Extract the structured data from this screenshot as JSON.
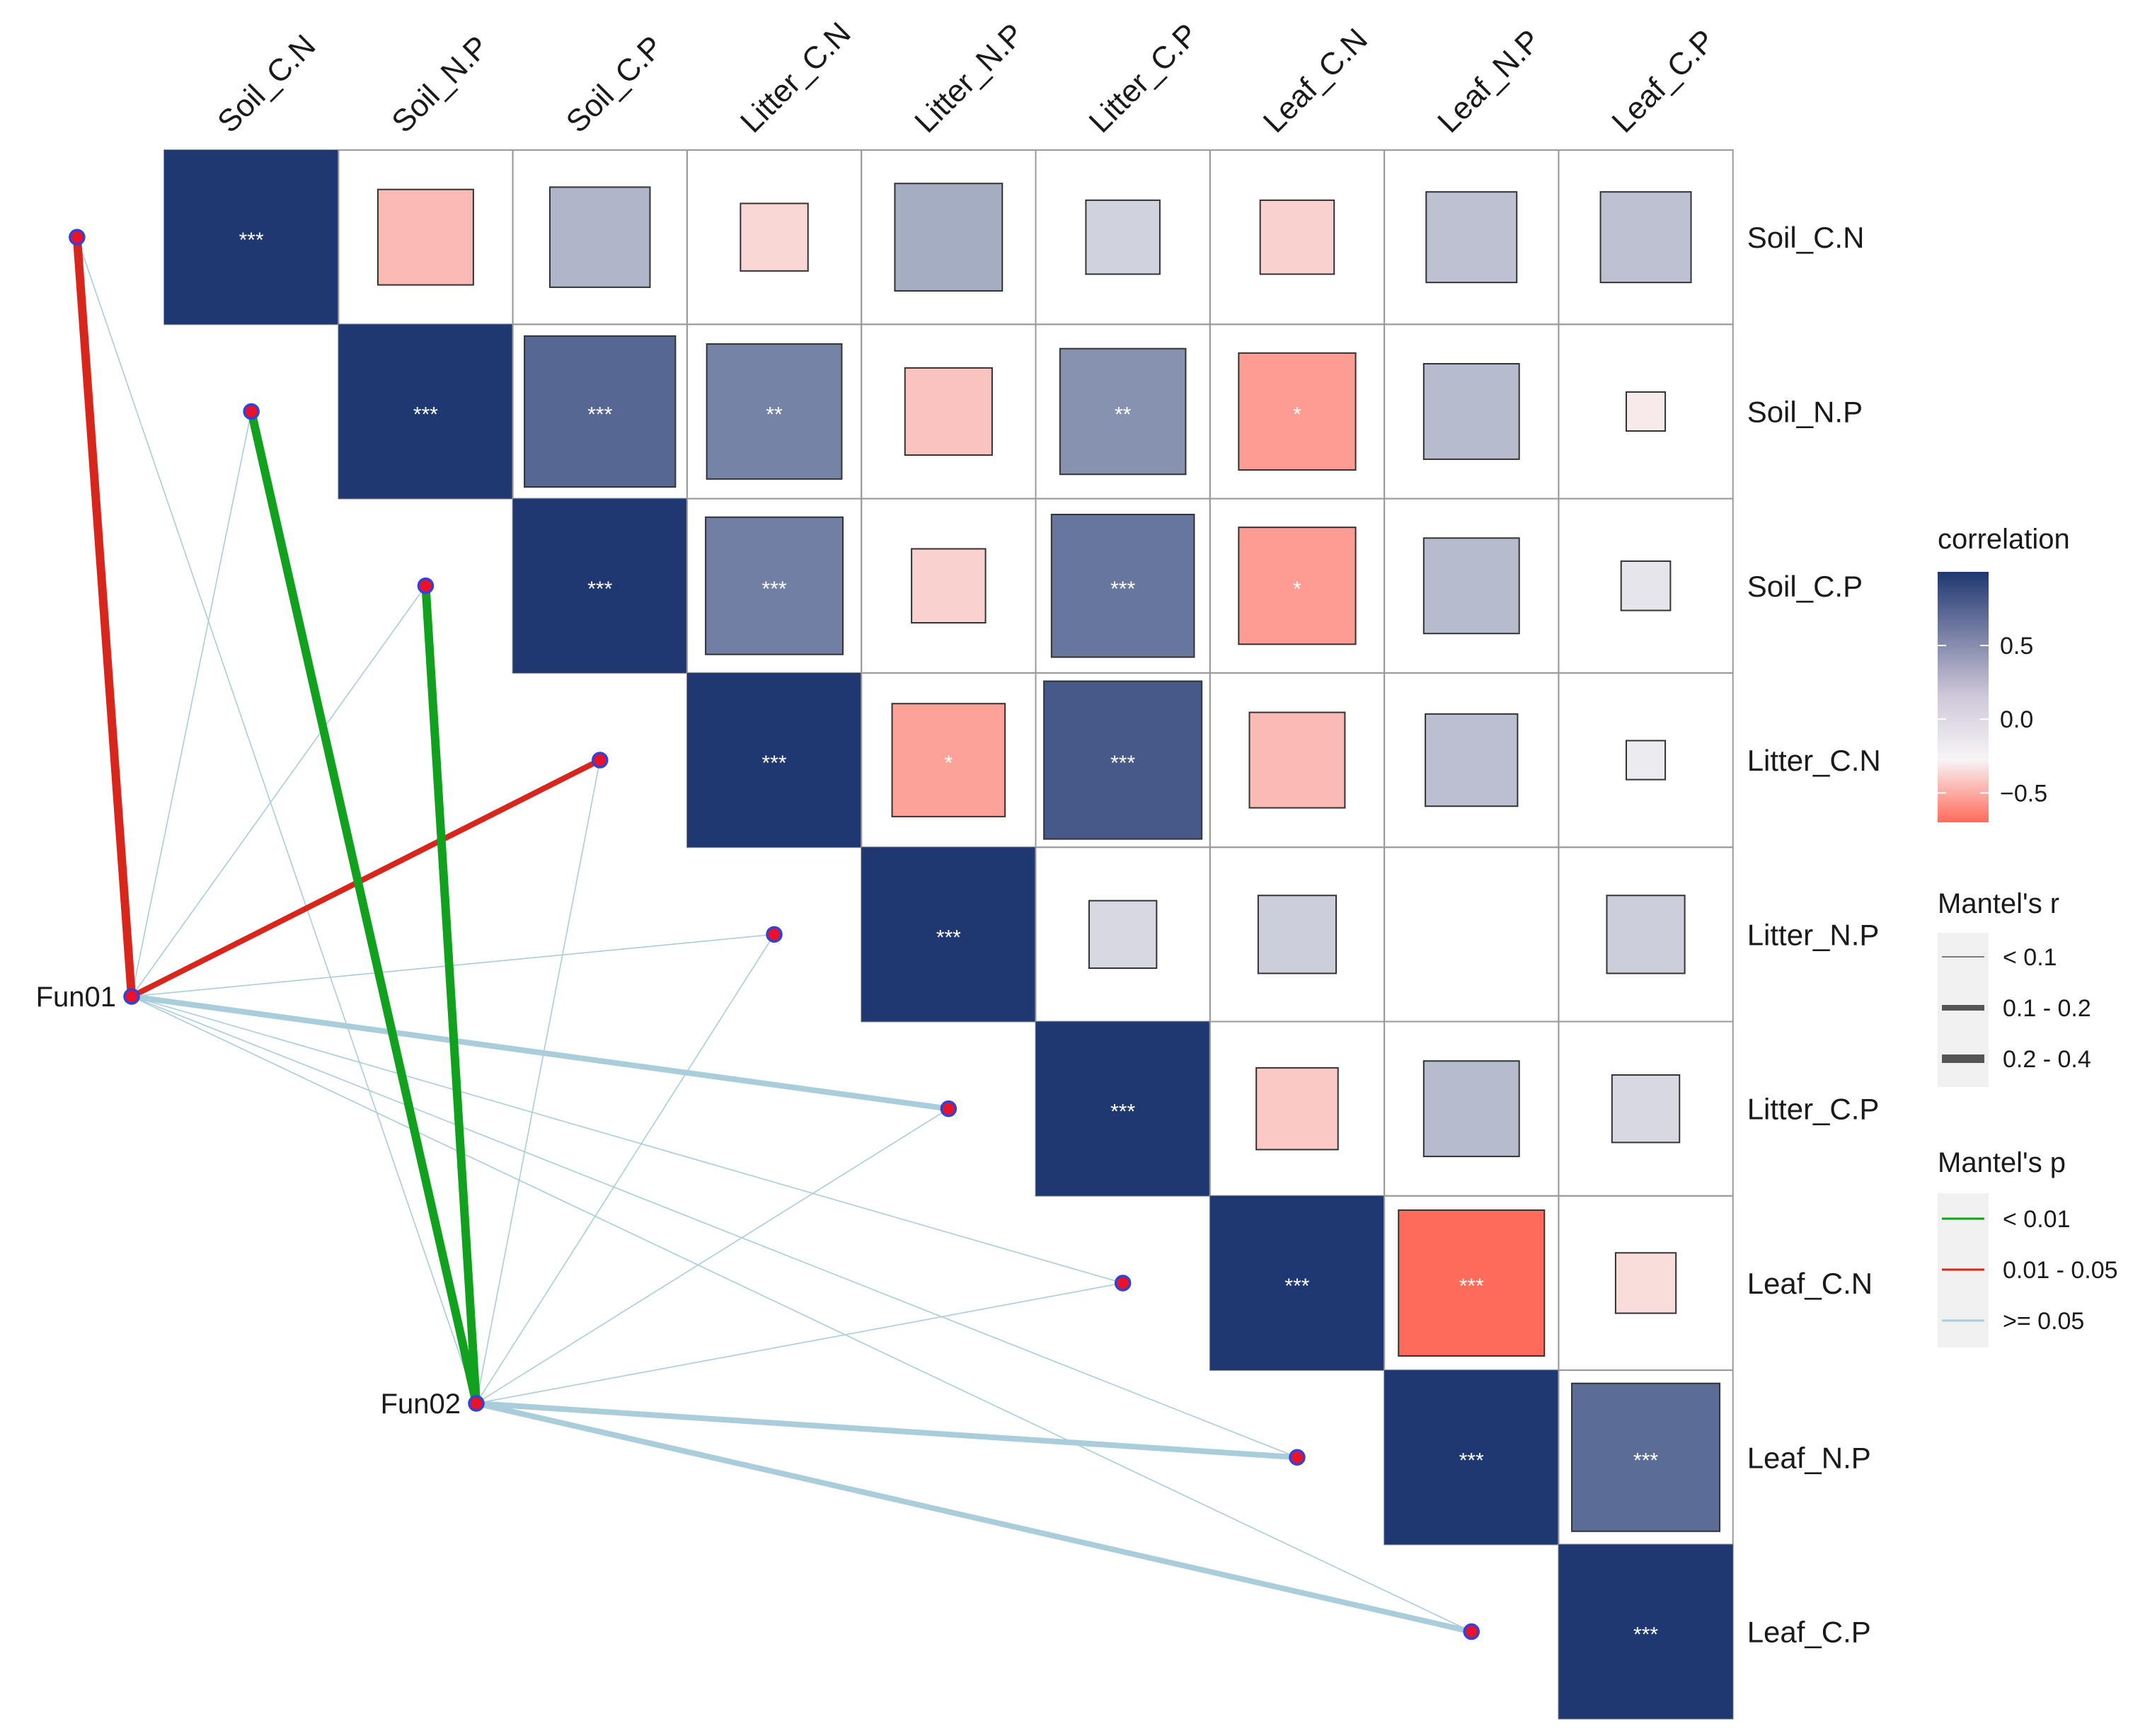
{
  "chart_data": {
    "type": "mantel-correlogram",
    "variables": [
      "Soil_C.N",
      "Soil_N.P",
      "Soil_C.P",
      "Litter_C.N",
      "Litter_N.P",
      "Litter_C.P",
      "Leaf_C.N",
      "Leaf_N.P",
      "Leaf_C.P"
    ],
    "correlation_range": [
      -0.7,
      1.0
    ],
    "colors": {
      "high": "#1f3871",
      "mid": "#f7f4f6",
      "low": "#ff6b5b",
      "grid": "#9a9a9a",
      "node_fill": "#e8132b",
      "node_stroke": "#3341d6",
      "link_green": "#11a11e",
      "link_red": "#d8261c",
      "link_blue": "#a9cdda"
    },
    "matrix": [
      {
        "row": 0,
        "col": 0,
        "r": 1.0,
        "sig": "***"
      },
      {
        "row": 0,
        "col": 1,
        "r": -0.3,
        "sig": ""
      },
      {
        "row": 0,
        "col": 2,
        "r": 0.33,
        "sig": ""
      },
      {
        "row": 0,
        "col": 3,
        "r": -0.15,
        "sig": ""
      },
      {
        "row": 0,
        "col": 4,
        "r": 0.38,
        "sig": ""
      },
      {
        "row": 0,
        "col": 5,
        "r": 0.18,
        "sig": ""
      },
      {
        "row": 0,
        "col": 6,
        "r": -0.18,
        "sig": ""
      },
      {
        "row": 0,
        "col": 7,
        "r": 0.27,
        "sig": ""
      },
      {
        "row": 0,
        "col": 8,
        "r": 0.27,
        "sig": ""
      },
      {
        "row": 1,
        "col": 1,
        "r": 1.0,
        "sig": "***"
      },
      {
        "row": 1,
        "col": 2,
        "r": 0.75,
        "sig": "***"
      },
      {
        "row": 1,
        "col": 3,
        "r": 0.6,
        "sig": "**"
      },
      {
        "row": 1,
        "col": 4,
        "r": -0.25,
        "sig": ""
      },
      {
        "row": 1,
        "col": 5,
        "r": 0.52,
        "sig": "**"
      },
      {
        "row": 1,
        "col": 6,
        "r": -0.45,
        "sig": "*"
      },
      {
        "row": 1,
        "col": 7,
        "r": 0.3,
        "sig": ""
      },
      {
        "row": 1,
        "col": 8,
        "r": -0.05,
        "sig": ""
      },
      {
        "row": 2,
        "col": 2,
        "r": 1.0,
        "sig": "***"
      },
      {
        "row": 2,
        "col": 3,
        "r": 0.62,
        "sig": "***"
      },
      {
        "row": 2,
        "col": 4,
        "r": -0.18,
        "sig": ""
      },
      {
        "row": 2,
        "col": 5,
        "r": 0.67,
        "sig": "***"
      },
      {
        "row": 2,
        "col": 6,
        "r": -0.45,
        "sig": "*"
      },
      {
        "row": 2,
        "col": 7,
        "r": 0.3,
        "sig": ""
      },
      {
        "row": 2,
        "col": 8,
        "r": 0.08,
        "sig": ""
      },
      {
        "row": 3,
        "col": 3,
        "r": 1.0,
        "sig": "***"
      },
      {
        "row": 3,
        "col": 4,
        "r": -0.42,
        "sig": "*"
      },
      {
        "row": 3,
        "col": 5,
        "r": 0.82,
        "sig": "***"
      },
      {
        "row": 3,
        "col": 6,
        "r": -0.3,
        "sig": ""
      },
      {
        "row": 3,
        "col": 7,
        "r": 0.28,
        "sig": ""
      },
      {
        "row": 3,
        "col": 8,
        "r": 0.05,
        "sig": ""
      },
      {
        "row": 4,
        "col": 4,
        "r": 1.0,
        "sig": "***"
      },
      {
        "row": 4,
        "col": 5,
        "r": 0.15,
        "sig": ""
      },
      {
        "row": 4,
        "col": 6,
        "r": 0.2,
        "sig": ""
      },
      {
        "row": 4,
        "col": 7,
        "r": 0.0,
        "sig": ""
      },
      {
        "row": 4,
        "col": 8,
        "r": 0.2,
        "sig": ""
      },
      {
        "row": 5,
        "col": 5,
        "r": 1.0,
        "sig": "***"
      },
      {
        "row": 5,
        "col": 6,
        "r": -0.22,
        "sig": ""
      },
      {
        "row": 5,
        "col": 7,
        "r": 0.3,
        "sig": ""
      },
      {
        "row": 5,
        "col": 8,
        "r": 0.15,
        "sig": ""
      },
      {
        "row": 6,
        "col": 6,
        "r": 1.0,
        "sig": "***"
      },
      {
        "row": 6,
        "col": 7,
        "r": -0.7,
        "sig": "***"
      },
      {
        "row": 6,
        "col": 8,
        "r": -0.12,
        "sig": ""
      },
      {
        "row": 7,
        "col": 7,
        "r": 1.0,
        "sig": "***"
      },
      {
        "row": 7,
        "col": 8,
        "r": 0.72,
        "sig": "***"
      },
      {
        "row": 8,
        "col": 8,
        "r": 1.0,
        "sig": "***"
      }
    ],
    "mantel_sources": [
      "Fun01",
      "Fun02"
    ],
    "mantel_links": [
      {
        "from": "Fun01",
        "to": 0,
        "r_class": "0.2 - 0.4",
        "p_class": "0.01 - 0.05"
      },
      {
        "from": "Fun01",
        "to": 1,
        "r_class": "< 0.1",
        "p_class": ">= 0.05"
      },
      {
        "from": "Fun01",
        "to": 2,
        "r_class": "< 0.1",
        "p_class": ">= 0.05"
      },
      {
        "from": "Fun01",
        "to": 3,
        "r_class": "0.1 - 0.2",
        "p_class": "0.01 - 0.05"
      },
      {
        "from": "Fun01",
        "to": 4,
        "r_class": "< 0.1",
        "p_class": ">= 0.05"
      },
      {
        "from": "Fun01",
        "to": 5,
        "r_class": "0.1 - 0.2",
        "p_class": ">= 0.05"
      },
      {
        "from": "Fun01",
        "to": 6,
        "r_class": "< 0.1",
        "p_class": ">= 0.05"
      },
      {
        "from": "Fun01",
        "to": 7,
        "r_class": "< 0.1",
        "p_class": ">= 0.05"
      },
      {
        "from": "Fun01",
        "to": 8,
        "r_class": "< 0.1",
        "p_class": ">= 0.05"
      },
      {
        "from": "Fun02",
        "to": 0,
        "r_class": "< 0.1",
        "p_class": ">= 0.05"
      },
      {
        "from": "Fun02",
        "to": 1,
        "r_class": "0.2 - 0.4",
        "p_class": "< 0.01"
      },
      {
        "from": "Fun02",
        "to": 2,
        "r_class": "0.2 - 0.4",
        "p_class": "< 0.01"
      },
      {
        "from": "Fun02",
        "to": 3,
        "r_class": "< 0.1",
        "p_class": ">= 0.05"
      },
      {
        "from": "Fun02",
        "to": 4,
        "r_class": "< 0.1",
        "p_class": ">= 0.05"
      },
      {
        "from": "Fun02",
        "to": 5,
        "r_class": "< 0.1",
        "p_class": ">= 0.05"
      },
      {
        "from": "Fun02",
        "to": 6,
        "r_class": "< 0.1",
        "p_class": ">= 0.05"
      },
      {
        "from": "Fun02",
        "to": 7,
        "r_class": "0.1 - 0.2",
        "p_class": ">= 0.05"
      },
      {
        "from": "Fun02",
        "to": 8,
        "r_class": "0.1 - 0.2",
        "p_class": ">= 0.05"
      }
    ],
    "legend": {
      "correlation_title": "correlation",
      "correlation_ticks": [
        {
          "value": 0.5,
          "label": "0.5"
        },
        {
          "value": 0.0,
          "label": "0.0"
        },
        {
          "value": -0.5,
          "label": "−0.5"
        }
      ],
      "r_title": "Mantel's r",
      "r_items": [
        {
          "label": "< 0.1",
          "class": "< 0.1"
        },
        {
          "label": "0.1 - 0.2",
          "class": "0.1 - 0.2"
        },
        {
          "label": "0.2 - 0.4",
          "class": "0.2 - 0.4"
        }
      ],
      "p_title": "Mantel's p",
      "p_items": [
        {
          "label": "< 0.01",
          "class": "< 0.01"
        },
        {
          "label": "0.01 - 0.05",
          "class": "0.01 - 0.05"
        },
        {
          "label": ">= 0.05",
          "class": ">= 0.05"
        }
      ]
    }
  }
}
